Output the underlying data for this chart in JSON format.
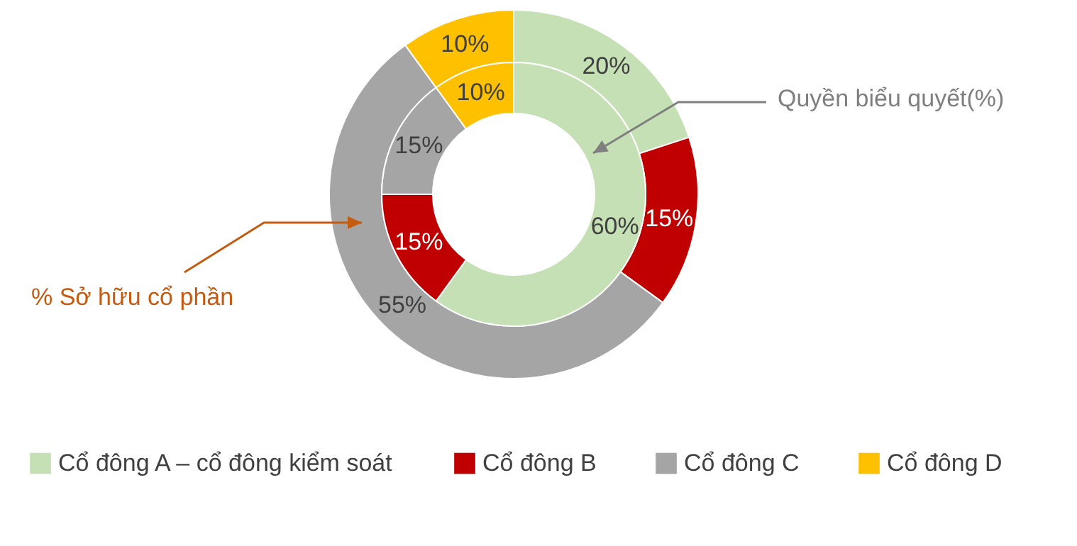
{
  "chart_data": {
    "type": "donut",
    "categories": [
      "Cổ đông A – cổ đông kiểm soát",
      "Cổ đông B",
      "Cổ đông C",
      "Cổ đông D"
    ],
    "colors": [
      "#c5e0b4",
      "#c00000",
      "#a5a5a5",
      "#ffc000"
    ],
    "series": [
      {
        "name": "% Sở hữu cổ phần",
        "values": [
          20,
          15,
          55,
          10
        ],
        "value_labels": [
          "20%",
          "15%",
          "55%",
          "10%"
        ]
      },
      {
        "name": "Quyền biểu quyết(%)",
        "values": [
          60,
          15,
          15,
          10
        ],
        "value_labels": [
          "60%",
          "15%",
          "15%",
          "10%"
        ]
      }
    ],
    "legend": "bottom"
  }
}
